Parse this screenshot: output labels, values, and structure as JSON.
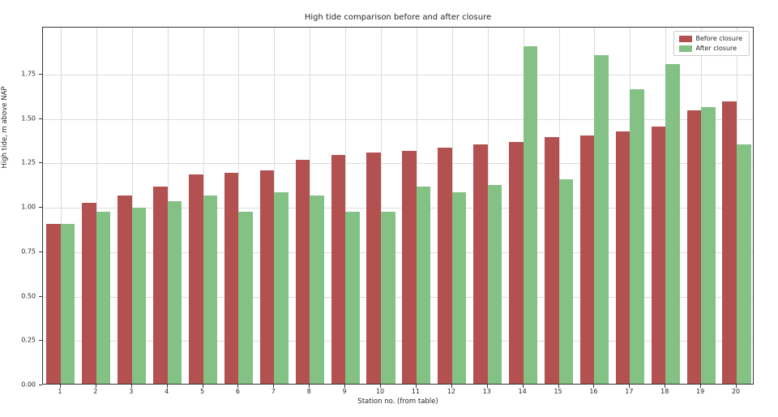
{
  "chart_data": {
    "type": "bar",
    "title": "High tide comparison before and after closure",
    "xlabel": "Station no. (from table)",
    "ylabel": "High tide, m above NAP",
    "categories": [
      1,
      2,
      3,
      4,
      5,
      6,
      7,
      8,
      9,
      10,
      11,
      12,
      13,
      14,
      15,
      16,
      17,
      18,
      19,
      20
    ],
    "series": [
      {
        "name": "Before closure",
        "color": "#b25150",
        "values": [
          0.9,
          1.02,
          1.06,
          1.11,
          1.18,
          1.19,
          1.2,
          1.26,
          1.29,
          1.3,
          1.31,
          1.33,
          1.35,
          1.36,
          1.39,
          1.4,
          1.42,
          1.45,
          1.54,
          1.59
        ]
      },
      {
        "name": "After closure",
        "color": "#84c184",
        "values": [
          0.9,
          0.97,
          0.99,
          1.03,
          1.06,
          0.97,
          1.08,
          1.06,
          0.97,
          0.97,
          1.11,
          1.08,
          1.12,
          1.9,
          1.15,
          1.85,
          1.66,
          1.8,
          1.56,
          1.35
        ]
      }
    ],
    "ylim": [
      0,
      2.015
    ],
    "xlim": [
      0.5,
      20.5
    ],
    "yticks": [
      0.0,
      0.25,
      0.5,
      0.75,
      1.0,
      1.25,
      1.5,
      1.75
    ],
    "ytick_labels": [
      "0.00",
      "0.25",
      "0.50",
      "0.75",
      "1.00",
      "1.25",
      "1.50",
      "1.75"
    ],
    "bar_width": 0.4,
    "grid": true,
    "legend_position": "upper right"
  },
  "colors": {
    "grid": "#dcdcdc",
    "axis": "#363636",
    "text": "#262626",
    "background": "#ffffff"
  }
}
